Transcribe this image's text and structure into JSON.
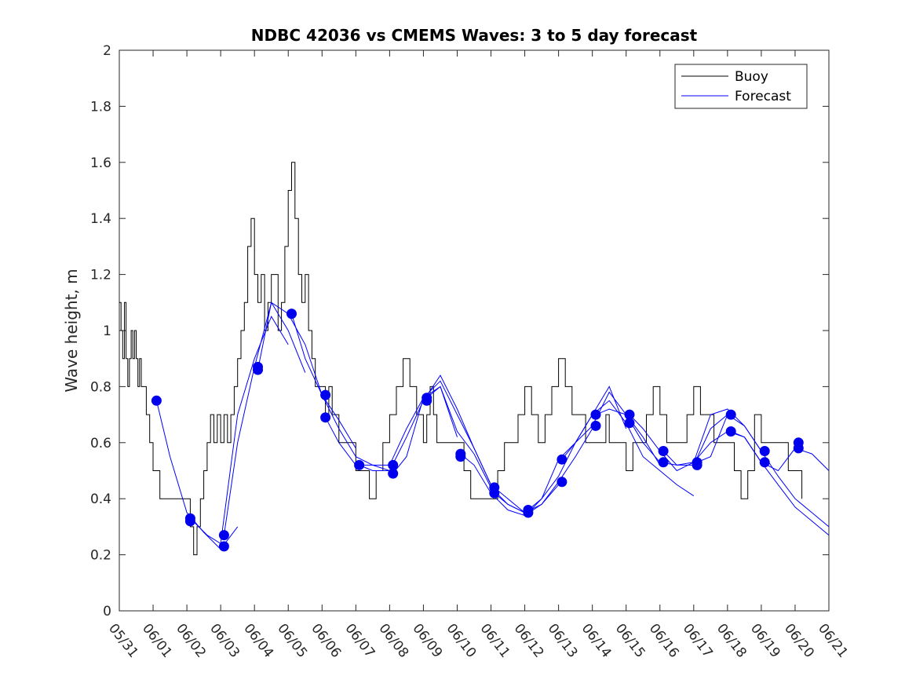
{
  "chart_data": {
    "type": "line",
    "title": "NDBC 42036 vs CMEMS Waves: 3 to 5 day forecast",
    "xlabel": "",
    "ylabel": "Wave height, m",
    "xlim": [
      "05/31",
      "06/21"
    ],
    "ylim": [
      0,
      2
    ],
    "x_ticks": [
      "05/31",
      "06/01",
      "06/02",
      "06/03",
      "06/04",
      "06/05",
      "06/06",
      "06/07",
      "06/08",
      "06/09",
      "06/10",
      "06/11",
      "06/12",
      "06/13",
      "06/14",
      "06/15",
      "06/16",
      "06/17",
      "06/18",
      "06/19",
      "06/20",
      "06/21"
    ],
    "y_ticks": [
      "0",
      "0.2",
      "0.4",
      "0.6",
      "0.8",
      "1",
      "1.2",
      "1.4",
      "1.6",
      "1.8",
      "2"
    ],
    "legend": {
      "placement": "top-right",
      "entries": [
        "Buoy",
        "Forecast"
      ]
    },
    "colors": {
      "buoy": "#000000",
      "forecast": "#0000ff",
      "markers": "#0000ee"
    },
    "series": [
      {
        "name": "Buoy",
        "x_days_from_05_31": [
          0,
          0.05,
          0.1,
          0.15,
          0.2,
          0.25,
          0.3,
          0.35,
          0.4,
          0.45,
          0.5,
          0.55,
          0.6,
          0.65,
          0.7,
          0.75,
          0.8,
          0.85,
          0.9,
          0.95,
          1.0,
          1.1,
          1.2,
          1.3,
          1.4,
          1.5,
          1.7,
          1.9,
          2.1,
          2.2,
          2.3,
          2.4,
          2.5,
          2.6,
          2.7,
          2.8,
          2.9,
          3.0,
          3.1,
          3.2,
          3.3,
          3.4,
          3.5,
          3.6,
          3.7,
          3.8,
          3.9,
          4.0,
          4.1,
          4.2,
          4.3,
          4.4,
          4.5,
          4.6,
          4.7,
          4.8,
          4.9,
          5.0,
          5.1,
          5.2,
          5.3,
          5.4,
          5.5,
          5.6,
          5.7,
          5.8,
          5.9,
          6.0,
          6.1,
          6.2,
          6.3,
          6.4,
          6.5,
          6.6,
          6.8,
          7.0,
          7.2,
          7.4,
          7.6,
          7.8,
          8.0,
          8.2,
          8.4,
          8.6,
          8.8,
          9.0,
          9.1,
          9.2,
          9.3,
          9.4,
          9.6,
          9.8,
          10.0,
          10.2,
          10.4,
          10.6,
          10.8,
          11.0,
          11.2,
          11.4,
          11.6,
          11.8,
          12.0,
          12.2,
          12.4,
          12.6,
          12.8,
          13.0,
          13.2,
          13.4,
          13.6,
          13.8,
          14.0,
          14.1,
          14.2,
          14.3,
          14.4,
          14.5,
          14.6,
          14.8,
          15.0,
          15.2,
          15.4,
          15.6,
          15.8,
          16.0,
          16.2,
          16.4,
          16.6,
          16.8,
          17.0,
          17.2,
          17.4,
          17.6,
          17.8,
          18.0,
          18.2,
          18.4,
          18.6,
          18.8,
          19.0,
          19.2,
          19.4,
          19.6,
          19.8,
          20.0,
          20.1,
          20.2
        ],
        "values": [
          1.1,
          1.0,
          0.9,
          1.1,
          0.9,
          0.8,
          0.9,
          1.0,
          0.9,
          1.0,
          0.9,
          0.8,
          0.9,
          0.8,
          0.8,
          0.8,
          0.7,
          0.7,
          0.6,
          0.6,
          0.5,
          0.5,
          0.4,
          0.4,
          0.4,
          0.4,
          0.4,
          0.4,
          0.3,
          0.2,
          0.3,
          0.4,
          0.5,
          0.6,
          0.7,
          0.6,
          0.7,
          0.6,
          0.7,
          0.6,
          0.7,
          0.8,
          0.9,
          1.0,
          1.1,
          1.3,
          1.4,
          1.2,
          1.1,
          1.2,
          1.0,
          1.1,
          1.2,
          1.2,
          1.0,
          1.1,
          1.3,
          1.5,
          1.6,
          1.4,
          1.2,
          1.1,
          1.2,
          1.0,
          0.9,
          0.8,
          0.8,
          0.8,
          0.7,
          0.8,
          0.7,
          0.7,
          0.6,
          0.6,
          0.6,
          0.5,
          0.5,
          0.4,
          0.5,
          0.6,
          0.7,
          0.8,
          0.9,
          0.8,
          0.7,
          0.6,
          0.7,
          0.8,
          0.7,
          0.6,
          0.6,
          0.6,
          0.6,
          0.5,
          0.4,
          0.4,
          0.4,
          0.4,
          0.5,
          0.6,
          0.6,
          0.7,
          0.8,
          0.7,
          0.6,
          0.7,
          0.8,
          0.9,
          0.8,
          0.7,
          0.7,
          0.6,
          0.6,
          0.6,
          0.6,
          0.6,
          0.7,
          0.6,
          0.6,
          0.6,
          0.5,
          0.6,
          0.6,
          0.7,
          0.8,
          0.7,
          0.6,
          0.6,
          0.6,
          0.7,
          0.8,
          0.7,
          0.7,
          0.6,
          0.6,
          0.6,
          0.5,
          0.4,
          0.5,
          0.7,
          0.6,
          0.6,
          0.6,
          0.6,
          0.5,
          0.5,
          0.5,
          0.4,
          0.5
        ]
      },
      {
        "name": "Forecast",
        "runs": [
          {
            "x": [
              1.1,
              1.5,
              2.0,
              2.5,
              3.0,
              3.5
            ],
            "values": [
              0.75,
              0.55,
              0.35,
              0.28,
              0.22,
              0.3
            ]
          },
          {
            "x": [
              2.1,
              2.6,
              3.0,
              3.5,
              4.0,
              4.5,
              5.0
            ],
            "values": [
              0.33,
              0.27,
              0.24,
              0.7,
              0.9,
              1.05,
              0.95
            ]
          },
          {
            "x": [
              3.1,
              3.5,
              4.0,
              4.5,
              5.0,
              5.5
            ],
            "values": [
              0.27,
              0.6,
              0.87,
              1.1,
              1.0,
              0.85
            ]
          },
          {
            "x": [
              4.1,
              4.5,
              5.0,
              5.5,
              6.0,
              6.5,
              7.0
            ],
            "values": [
              0.86,
              1.1,
              1.06,
              0.95,
              0.77,
              0.68,
              0.58
            ]
          },
          {
            "x": [
              5.1,
              5.5,
              6.0,
              6.5,
              7.0,
              7.5,
              8.0
            ],
            "values": [
              1.06,
              0.9,
              0.77,
              0.65,
              0.55,
              0.52,
              0.5
            ]
          },
          {
            "x": [
              6.1,
              6.5,
              7.0,
              7.5,
              8.0,
              8.5,
              9.0,
              9.5,
              10.0
            ],
            "values": [
              0.69,
              0.6,
              0.52,
              0.52,
              0.52,
              0.65,
              0.76,
              0.8,
              0.62
            ]
          },
          {
            "x": [
              7.1,
              7.5,
              8.0,
              8.5,
              9.0,
              9.5,
              10.0,
              10.5,
              11.0
            ],
            "values": [
              0.52,
              0.5,
              0.5,
              0.62,
              0.75,
              0.84,
              0.72,
              0.58,
              0.45
            ]
          },
          {
            "x": [
              8.1,
              8.5,
              9.0,
              9.5,
              10.0,
              10.5,
              11.0,
              11.5,
              12.0
            ],
            "values": [
              0.49,
              0.55,
              0.76,
              0.82,
              0.7,
              0.58,
              0.45,
              0.4,
              0.35
            ]
          },
          {
            "x": [
              9.1,
              9.5,
              10.0,
              10.5,
              11.0,
              11.5,
              12.0,
              12.5,
              13.0
            ],
            "values": [
              0.76,
              0.8,
              0.64,
              0.56,
              0.44,
              0.38,
              0.35,
              0.38,
              0.45
            ]
          },
          {
            "x": [
              10.1,
              10.5,
              11.0,
              11.5,
              12.0,
              12.5,
              13.0,
              13.5,
              14.0
            ],
            "values": [
              0.56,
              0.52,
              0.42,
              0.36,
              0.34,
              0.38,
              0.46,
              0.55,
              0.65
            ]
          },
          {
            "x": [
              11.1,
              11.5,
              12.0,
              12.5,
              13.0,
              13.5,
              14.0,
              14.5,
              15.0
            ],
            "values": [
              0.42,
              0.38,
              0.35,
              0.4,
              0.48,
              0.6,
              0.7,
              0.8,
              0.65
            ]
          },
          {
            "x": [
              12.1,
              12.5,
              13.0,
              13.5,
              14.0,
              14.5,
              15.0,
              15.5,
              16.0
            ],
            "values": [
              0.35,
              0.4,
              0.54,
              0.6,
              0.66,
              0.78,
              0.7,
              0.62,
              0.52
            ]
          },
          {
            "x": [
              13.1,
              13.5,
              14.0,
              14.5,
              15.0,
              15.5,
              16.0,
              16.5,
              17.0
            ],
            "values": [
              0.54,
              0.6,
              0.7,
              0.75,
              0.67,
              0.55,
              0.5,
              0.45,
              0.41
            ]
          },
          {
            "x": [
              14.1,
              14.5,
              15.0,
              15.5,
              16.0,
              16.5,
              17.0,
              17.5,
              18.0
            ],
            "values": [
              0.7,
              0.72,
              0.7,
              0.6,
              0.53,
              0.52,
              0.52,
              0.65,
              0.7
            ]
          },
          {
            "x": [
              15.1,
              15.5,
              16.0,
              16.5,
              17.0,
              17.5,
              18.0,
              18.5,
              19.0
            ],
            "values": [
              0.7,
              0.65,
              0.57,
              0.5,
              0.53,
              0.7,
              0.72,
              0.66,
              0.57
            ]
          },
          {
            "x": [
              16.1,
              16.5,
              17.0,
              17.5,
              18.0,
              18.5,
              19.0,
              19.5,
              20.0,
              20.5,
              21.0
            ],
            "values": [
              0.57,
              0.52,
              0.53,
              0.6,
              0.64,
              0.62,
              0.53,
              0.5,
              0.58,
              0.56,
              0.5
            ]
          },
          {
            "x": [
              17.1,
              17.5,
              18.0,
              18.5,
              19.0,
              19.5,
              20.0,
              20.5,
              21.0
            ],
            "values": [
              0.53,
              0.55,
              0.7,
              0.66,
              0.57,
              0.48,
              0.4,
              0.35,
              0.3
            ]
          },
          {
            "x": [
              18.1,
              18.5,
              19.0,
              19.5,
              20.0,
              20.5,
              21.0
            ],
            "values": [
              0.64,
              0.62,
              0.53,
              0.45,
              0.37,
              0.32,
              0.27
            ]
          }
        ],
        "markers_x": [
          1.1,
          2.1,
          2.1,
          3.1,
          3.1,
          4.1,
          4.1,
          5.1,
          6.1,
          6.1,
          7.1,
          8.1,
          8.1,
          9.1,
          9.1,
          10.1,
          10.1,
          11.1,
          11.1,
          12.1,
          12.1,
          13.1,
          13.1,
          14.1,
          14.1,
          15.1,
          15.1,
          16.1,
          16.1,
          17.1,
          17.1,
          18.1,
          18.1,
          19.1,
          19.1,
          20.1,
          20.1
        ],
        "markers_values": [
          0.75,
          0.33,
          0.32,
          0.27,
          0.23,
          0.87,
          0.86,
          1.06,
          0.77,
          0.69,
          0.52,
          0.52,
          0.49,
          0.76,
          0.75,
          0.56,
          0.55,
          0.44,
          0.42,
          0.36,
          0.35,
          0.54,
          0.46,
          0.7,
          0.66,
          0.7,
          0.67,
          0.57,
          0.53,
          0.53,
          0.52,
          0.7,
          0.64,
          0.57,
          0.53,
          0.6,
          0.58
        ]
      }
    ]
  }
}
